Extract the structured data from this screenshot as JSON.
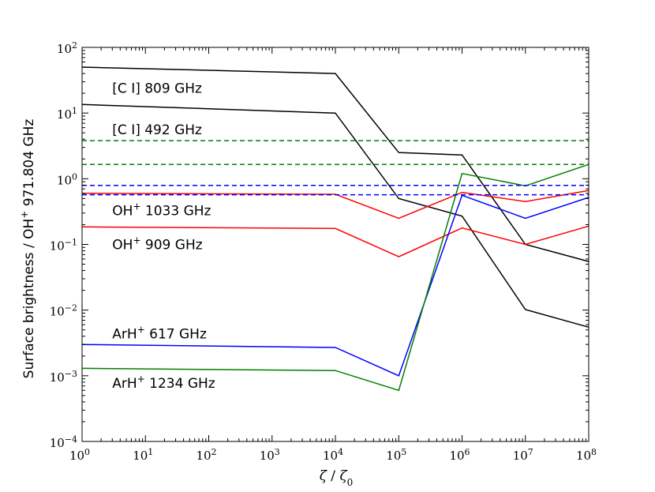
{
  "chart_data": {
    "type": "line",
    "xscale": "log",
    "yscale": "log",
    "xlim": [
      1,
      100000000
    ],
    "ylim": [
      0.0001,
      100
    ],
    "xlabel_sym": "ζ",
    "xlabel_sep": " / ",
    "xlabel_sym0": "ζ",
    "xlabel_sub": "0",
    "ylabel_main": "Surface brightness / OH",
    "ylabel_sup": "+",
    "ylabel_tail": " 971.804 GHz",
    "x_ticks": [
      {
        "base": "10",
        "exp": "0",
        "value": 1
      },
      {
        "base": "10",
        "exp": "1",
        "value": 10
      },
      {
        "base": "10",
        "exp": "2",
        "value": 100
      },
      {
        "base": "10",
        "exp": "3",
        "value": 1000
      },
      {
        "base": "10",
        "exp": "4",
        "value": 10000
      },
      {
        "base": "10",
        "exp": "5",
        "value": 100000
      },
      {
        "base": "10",
        "exp": "6",
        "value": 1000000
      },
      {
        "base": "10",
        "exp": "7",
        "value": 10000000
      },
      {
        "base": "10",
        "exp": "8",
        "value": 100000000
      }
    ],
    "y_ticks": [
      {
        "base": "10",
        "exp": "−4",
        "value": 0.0001
      },
      {
        "base": "10",
        "exp": "−3",
        "value": 0.001
      },
      {
        "base": "10",
        "exp": "−2",
        "value": 0.01
      },
      {
        "base": "10",
        "exp": "−1",
        "value": 0.1
      },
      {
        "base": "10",
        "exp": "0",
        "value": 1
      },
      {
        "base": "10",
        "exp": "1",
        "value": 10
      },
      {
        "base": "10",
        "exp": "2",
        "value": 100
      }
    ],
    "series": [
      {
        "name": "[C I] 809 GHz",
        "color": "#000000",
        "x": [
          1,
          10000,
          100000,
          1000000,
          10000000,
          100000000
        ],
        "y": [
          50,
          40,
          2.5,
          2.3,
          0.1,
          0.055
        ]
      },
      {
        "name": "[C I] 492 GHz",
        "color": "#000000",
        "x": [
          1,
          10000,
          100000,
          1000000,
          10000000,
          100000000
        ],
        "y": [
          13.5,
          10,
          0.5,
          0.27,
          0.0102,
          0.0055
        ]
      },
      {
        "name": "OH+ 1033 GHz",
        "color": "#ff0000",
        "x": [
          1,
          10000,
          100000,
          1000000,
          10000000,
          100000000
        ],
        "y": [
          0.6,
          0.58,
          0.25,
          0.62,
          0.45,
          0.66
        ]
      },
      {
        "name": "OH+ 909 GHz",
        "color": "#ff0000",
        "x": [
          1,
          10000,
          100000,
          1000000,
          10000000,
          100000000
        ],
        "y": [
          0.185,
          0.175,
          0.065,
          0.178,
          0.1,
          0.19
        ]
      },
      {
        "name": "ArH+ 617 GHz",
        "color": "#0000ff",
        "x": [
          1,
          10000,
          100000,
          1000000,
          10000000,
          100000000
        ],
        "y": [
          0.003,
          0.0027,
          0.001,
          0.56,
          0.25,
          0.52
        ]
      },
      {
        "name": "ArH+ 1234 GHz",
        "color": "#008000",
        "x": [
          1,
          10000,
          100000,
          1000000,
          10000000,
          100000000
        ],
        "y": [
          0.0013,
          0.0012,
          0.0006,
          1.2,
          0.78,
          1.65
        ]
      }
    ],
    "reference_lines": [
      {
        "color": "#008000",
        "y": 3.8,
        "style": "dashed"
      },
      {
        "color": "#008000",
        "y": 1.65,
        "style": "dashed"
      },
      {
        "color": "#0000ff",
        "y": 0.79,
        "style": "dashed"
      },
      {
        "color": "#0000ff",
        "y": 0.57,
        "style": "dashed"
      }
    ],
    "annotations": [
      {
        "id": "ci809",
        "pre": "[C I] 809 GHz",
        "sup": "",
        "post": "",
        "x": 3,
        "y": 24
      },
      {
        "id": "ci492",
        "pre": "[C I] 492 GHz",
        "sup": "",
        "post": "",
        "x": 3,
        "y": 5.6
      },
      {
        "id": "oh1033",
        "pre": "OH",
        "sup": "+",
        "post": " 1033 GHz",
        "x": 3,
        "y": 0.33
      },
      {
        "id": "oh909",
        "pre": "OH",
        "sup": "+",
        "post": " 909 GHz",
        "x": 3,
        "y": 0.1
      },
      {
        "id": "arh617",
        "pre": "ArH",
        "sup": "+",
        "post": " 617 GHz",
        "x": 3,
        "y": 0.0044
      },
      {
        "id": "arh1234",
        "pre": "ArH",
        "sup": "+",
        "post": " 1234 GHz",
        "x": 3,
        "y": 0.00078
      }
    ]
  }
}
